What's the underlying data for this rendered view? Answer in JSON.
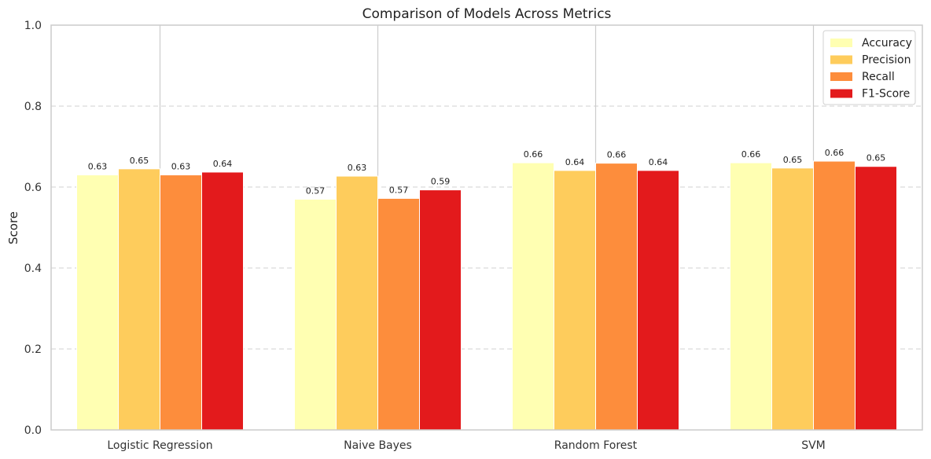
{
  "chart_data": {
    "type": "bar",
    "title": "Comparison of Models Across Metrics",
    "xlabel": "",
    "ylabel": "Score",
    "ylim": [
      0,
      1.0
    ],
    "yticks": [
      "0.0",
      "0.2",
      "0.4",
      "0.6",
      "0.8",
      "1.0"
    ],
    "grid": "y-dashed",
    "legend_position": "top-right",
    "categories": [
      "Logistic Regression",
      "Naive Bayes",
      "Random Forest",
      "SVM"
    ],
    "series": [
      {
        "name": "Accuracy",
        "color": "#ffffb2",
        "values": [
          0.63,
          0.57,
          0.66,
          0.66
        ],
        "labels": [
          "0.63",
          "0.57",
          "0.66",
          "0.66"
        ]
      },
      {
        "name": "Precision",
        "color": "#fecc5c",
        "values": [
          0.645,
          0.627,
          0.641,
          0.647
        ],
        "labels": [
          "0.65",
          "0.63",
          "0.64",
          "0.65"
        ]
      },
      {
        "name": "Recall",
        "color": "#fd8d3c",
        "values": [
          0.63,
          0.572,
          0.659,
          0.664
        ],
        "labels": [
          "0.63",
          "0.57",
          "0.66",
          "0.66"
        ]
      },
      {
        "name": "F1-Score",
        "color": "#e31a1c",
        "values": [
          0.637,
          0.593,
          0.641,
          0.651
        ],
        "labels": [
          "0.64",
          "0.59",
          "0.64",
          "0.65"
        ]
      }
    ]
  }
}
